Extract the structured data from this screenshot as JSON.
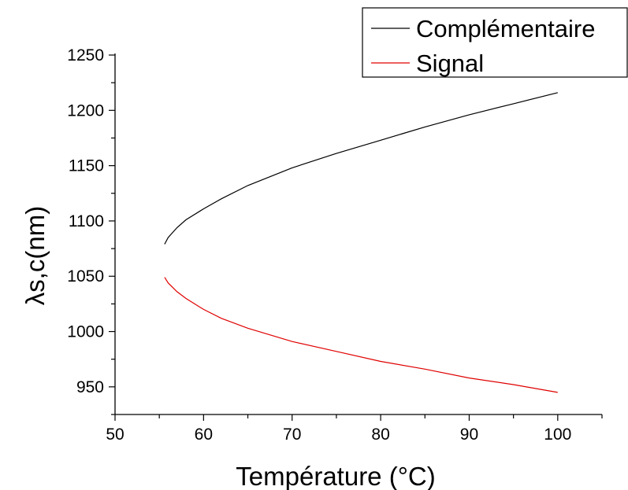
{
  "chart_data": {
    "type": "line",
    "title": "",
    "xlabel": "Température (°C)",
    "ylabel": "λs,c(nm)",
    "xlim": [
      50,
      105
    ],
    "ylim": [
      925,
      1250
    ],
    "xticks": [
      50,
      60,
      70,
      80,
      90,
      100
    ],
    "yticks": [
      950,
      1000,
      1050,
      1100,
      1150,
      1200,
      1250
    ],
    "grid": false,
    "legend_position": "top-right",
    "series": [
      {
        "name": "Complémentaire",
        "color": "#000000",
        "x": [
          55.6,
          56,
          57,
          58,
          60,
          62,
          65,
          70,
          75,
          80,
          85,
          90,
          95,
          100
        ],
        "y": [
          1079,
          1085,
          1094,
          1101,
          1111,
          1120,
          1132,
          1148,
          1161,
          1173,
          1185,
          1196,
          1206,
          1216
        ]
      },
      {
        "name": "Signal",
        "color": "#e00000",
        "x": [
          55.6,
          56,
          57,
          58,
          60,
          62,
          65,
          70,
          75,
          80,
          85,
          90,
          95,
          100
        ],
        "y": [
          1049,
          1044,
          1036,
          1030,
          1020,
          1012,
          1003,
          991,
          982,
          973,
          966,
          958,
          952,
          945
        ]
      }
    ]
  }
}
